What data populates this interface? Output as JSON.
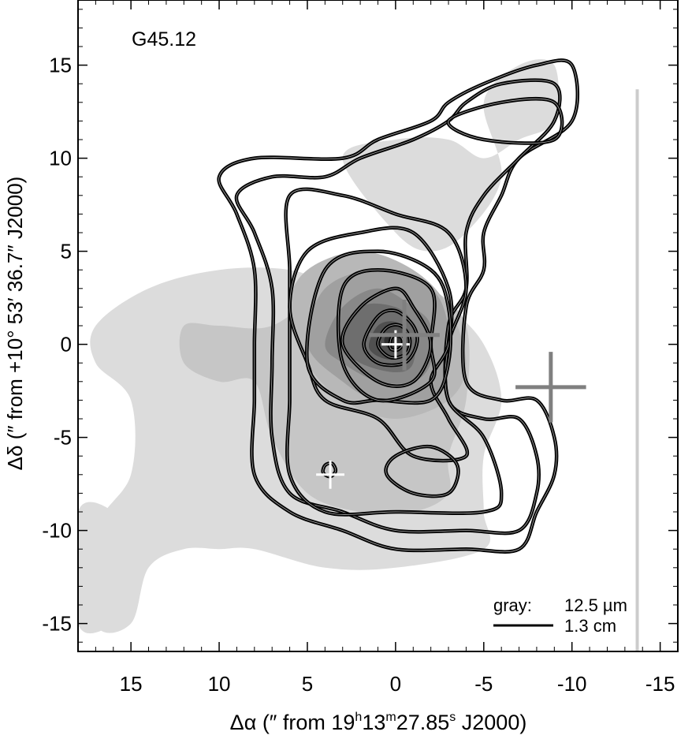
{
  "chart_data": {
    "type": "contour",
    "panel_label": "G45.12",
    "xlabel_parts": {
      "prefix": "Δα (″  from  19",
      "h": "h",
      "v1": "13",
      "m": "m",
      "v2": "27.85",
      "s": "s",
      "suffix": " J2000)"
    },
    "ylabel": "Δδ (″ from +10° 53′ 36.7″ J2000)",
    "xlim": [
      18,
      -16
    ],
    "ylim": [
      -16.5,
      18.5
    ],
    "x_ticks": [
      15,
      10,
      5,
      0,
      -5,
      -10,
      -15
    ],
    "x_tick_labels": [
      "15",
      "10",
      "5",
      "0",
      "-5",
      "-10",
      "-15"
    ],
    "y_ticks": [
      15,
      10,
      5,
      0,
      -5,
      -10,
      -15
    ],
    "y_tick_labels": [
      "15",
      "10",
      "5",
      "0",
      "-5",
      "-10",
      "-15"
    ],
    "legend": {
      "gray_label": "gray:",
      "gray_value": "12.5 µm",
      "line_value": "1.3 cm",
      "position": "bottom-right"
    },
    "gray_image": {
      "name": "12.5 µm",
      "levels": [
        {
          "shade": "#dcdcdc",
          "contour": [
            [
              17,
              1
            ],
            [
              14,
              3
            ],
            [
              10,
              4
            ],
            [
              6,
              4
            ],
            [
              3,
              3
            ],
            [
              1,
              3
            ],
            [
              -1,
              3
            ],
            [
              -3,
              2
            ],
            [
              -5,
              0
            ],
            [
              -6,
              -3
            ],
            [
              -5,
              -6
            ],
            [
              -5,
              -9
            ],
            [
              -5,
              -11
            ],
            [
              0,
              -12
            ],
            [
              4,
              -12
            ],
            [
              8,
              -11
            ],
            [
              10,
              -11
            ],
            [
              12,
              -11
            ],
            [
              14,
              -12
            ],
            [
              15,
              -15
            ],
            [
              17,
              -15
            ],
            [
              17,
              -10
            ],
            [
              15,
              -7
            ],
            [
              15,
              -3
            ],
            [
              17,
              -1
            ]
          ]
        },
        {
          "shade": "#dcdcdc",
          "contour": [
            [
              18,
              -9
            ],
            [
              16,
              -9
            ],
            [
              15,
              -11
            ],
            [
              15,
              -13
            ],
            [
              16,
              -15
            ],
            [
              18,
              -15
            ]
          ]
        },
        {
          "shade": "#dcdcdc",
          "contour": [
            [
              3,
              10
            ],
            [
              0,
              11
            ],
            [
              -3,
              11
            ],
            [
              -5,
              10
            ],
            [
              -7,
              11
            ],
            [
              -9,
              12
            ],
            [
              -9,
              15
            ],
            [
              -7,
              15
            ],
            [
              -5,
              13
            ],
            [
              -6,
              9
            ],
            [
              -4,
              6
            ],
            [
              -2,
              5
            ],
            [
              0,
              6
            ]
          ]
        },
        {
          "shade": "#c6c6c6",
          "contour": [
            [
              12,
              1
            ],
            [
              10,
              1
            ],
            [
              7,
              1
            ],
            [
              4,
              3
            ],
            [
              1,
              4
            ],
            [
              -2,
              3
            ],
            [
              -4,
              1
            ],
            [
              -4,
              -3
            ],
            [
              -3,
              -6
            ],
            [
              -3,
              -8
            ],
            [
              -1,
              -9
            ],
            [
              2,
              -9
            ],
            [
              5,
              -8
            ],
            [
              7,
              -5
            ],
            [
              8,
              -2
            ],
            [
              10,
              -2
            ],
            [
              12,
              -1
            ]
          ]
        },
        {
          "shade": "#b8b8b8",
          "contour": [
            [
              5,
              4
            ],
            [
              2,
              5
            ],
            [
              -1,
              4
            ],
            [
              -3,
              2
            ],
            [
              -4,
              -1
            ],
            [
              -3,
              -3
            ],
            [
              0,
              -4
            ],
            [
              3,
              -3
            ],
            [
              5,
              -1
            ],
            [
              6,
              2
            ]
          ]
        },
        {
          "shade": "#a0a0a0",
          "contour": [
            [
              4,
              3
            ],
            [
              1,
              4
            ],
            [
              -2,
              3
            ],
            [
              -3,
              1
            ],
            [
              -3,
              -1
            ],
            [
              -2,
              -3
            ],
            [
              1,
              -3
            ],
            [
              3,
              -2
            ],
            [
              5,
              0
            ]
          ]
        },
        {
          "shade": "#888888",
          "contour": [
            [
              3,
              2
            ],
            [
              1,
              3
            ],
            [
              -1,
              2
            ],
            [
              -2,
              1
            ],
            [
              -2,
              -1
            ],
            [
              -1,
              -2
            ],
            [
              1,
              -2
            ],
            [
              3,
              -1
            ],
            [
              4,
              0
            ]
          ]
        },
        {
          "shade": "#6e6e6e",
          "contour": [
            [
              2,
              2
            ],
            [
              0,
              2
            ],
            [
              -1,
              1
            ],
            [
              -1,
              -1
            ],
            [
              0,
              -1.5
            ],
            [
              2,
              -1
            ],
            [
              3,
              0
            ]
          ]
        },
        {
          "shade": "#505050",
          "contour": [
            [
              1,
              1
            ],
            [
              0,
              1.2
            ],
            [
              -0.8,
              0.5
            ],
            [
              -0.6,
              -0.5
            ],
            [
              0.5,
              -0.8
            ],
            [
              1.5,
              -0.2
            ]
          ]
        },
        {
          "shade": "#303030",
          "contour": [
            [
              0.5,
              0.5
            ],
            [
              -0.3,
              0.5
            ],
            [
              -0.5,
              0
            ],
            [
              0,
              -0.4
            ],
            [
              0.6,
              0
            ]
          ]
        }
      ]
    },
    "contours_1.3cm": [
      [
        [
          10,
          9
        ],
        [
          8,
          10
        ],
        [
          3,
          10
        ],
        [
          1,
          11
        ],
        [
          -2,
          12
        ],
        [
          -3,
          13
        ],
        [
          -5,
          14
        ],
        [
          -8,
          15
        ],
        [
          -10,
          15
        ],
        [
          -10,
          12
        ],
        [
          -7,
          10
        ],
        [
          -6,
          8
        ],
        [
          -5,
          6
        ],
        [
          -5,
          4
        ],
        [
          -4,
          2
        ],
        [
          -4,
          -2
        ],
        [
          -6,
          -3
        ],
        [
          -8,
          -3
        ],
        [
          -9,
          -5
        ],
        [
          -9,
          -7
        ],
        [
          -8,
          -9
        ],
        [
          -7,
          -11
        ],
        [
          -4,
          -11
        ],
        [
          0,
          -11
        ],
        [
          3,
          -10
        ],
        [
          6,
          -9
        ],
        [
          8,
          -7
        ],
        [
          8,
          -3
        ],
        [
          8,
          0
        ],
        [
          8,
          4
        ],
        [
          9,
          7
        ]
      ],
      [
        [
          9,
          8
        ],
        [
          7,
          9
        ],
        [
          4,
          9
        ],
        [
          2,
          10
        ],
        [
          -1,
          11
        ],
        [
          -3,
          12
        ],
        [
          -4,
          13
        ],
        [
          -6,
          14
        ],
        [
          -9,
          14
        ],
        [
          -9,
          12
        ],
        [
          -7,
          10
        ],
        [
          -5,
          8
        ],
        [
          -4,
          6
        ],
        [
          -4,
          3
        ],
        [
          -3,
          1
        ],
        [
          -3,
          -3
        ],
        [
          -5,
          -4
        ],
        [
          -7,
          -4
        ],
        [
          -8,
          -6
        ],
        [
          -8,
          -8
        ],
        [
          -7,
          -10
        ],
        [
          -4,
          -10
        ],
        [
          0,
          -10
        ],
        [
          3,
          -9
        ],
        [
          6,
          -8
        ],
        [
          7,
          -5
        ],
        [
          7,
          -1
        ],
        [
          7,
          3
        ],
        [
          8,
          6
        ]
      ],
      [
        [
          6,
          8
        ],
        [
          3,
          8
        ],
        [
          0,
          7
        ],
        [
          -3,
          6
        ],
        [
          -4,
          3
        ],
        [
          -3,
          0
        ],
        [
          -3,
          -3
        ],
        [
          -5,
          -5
        ],
        [
          -6,
          -8
        ],
        [
          -5,
          -9
        ],
        [
          0,
          -9
        ],
        [
          4,
          -9
        ],
        [
          6,
          -7
        ],
        [
          6,
          -3
        ],
        [
          6,
          0
        ],
        [
          6,
          4
        ]
      ],
      [
        [
          5,
          5
        ],
        [
          2,
          6
        ],
        [
          -1,
          6
        ],
        [
          -3,
          3
        ],
        [
          -3,
          0
        ],
        [
          -2,
          -2
        ],
        [
          -3,
          -4
        ],
        [
          -4,
          -6
        ],
        [
          -1,
          -6
        ],
        [
          1,
          -4
        ],
        [
          4,
          -3
        ],
        [
          5,
          -1
        ],
        [
          6,
          2
        ]
      ],
      [
        [
          4,
          4
        ],
        [
          1,
          5
        ],
        [
          -2,
          4
        ],
        [
          -3,
          2
        ],
        [
          -3,
          -1
        ],
        [
          -2,
          -3
        ],
        [
          1,
          -3
        ],
        [
          3,
          -3
        ],
        [
          5,
          -1
        ]
      ],
      [
        [
          3,
          3
        ],
        [
          1,
          4
        ],
        [
          -2,
          3
        ],
        [
          -2,
          0
        ],
        [
          -2,
          -2
        ],
        [
          1,
          -3
        ],
        [
          3,
          -1
        ]
      ],
      [
        [
          2,
          2
        ],
        [
          0,
          3
        ],
        [
          -1,
          2
        ],
        [
          -2,
          0
        ],
        [
          -1,
          -2
        ],
        [
          1,
          -2
        ],
        [
          3,
          0
        ]
      ],
      [
        [
          1,
          1.5
        ],
        [
          0,
          1.8
        ],
        [
          -1,
          1
        ],
        [
          -1.2,
          0
        ],
        [
          -0.5,
          -1
        ],
        [
          1,
          -1
        ],
        [
          1.8,
          0
        ]
      ],
      [
        [
          0.5,
          0.9
        ],
        [
          -0.3,
          1
        ],
        [
          -0.8,
          0.3
        ],
        [
          -0.6,
          -0.5
        ],
        [
          0.3,
          -0.7
        ],
        [
          1,
          0
        ]
      ],
      [
        [
          0.2,
          0.4
        ],
        [
          -0.3,
          0.4
        ],
        [
          -0.4,
          0
        ],
        [
          -0.1,
          -0.3
        ],
        [
          0.3,
          -0.2
        ]
      ],
      [
        [
          0,
          -6
        ],
        [
          -2,
          -5.5
        ],
        [
          -3.5,
          -6.5
        ],
        [
          -3,
          -8
        ],
        [
          -1,
          -8
        ],
        [
          0.5,
          -7
        ]
      ],
      [
        [
          -3,
          12
        ],
        [
          -5,
          11
        ],
        [
          -9,
          11
        ],
        [
          -9,
          13
        ],
        [
          -6,
          13
        ]
      ],
      [
        [
          4,
          -6.5
        ],
        [
          3.6,
          -6.4
        ],
        [
          3.4,
          -6.8
        ],
        [
          3.7,
          -7.1
        ],
        [
          4.1,
          -6.9
        ]
      ]
    ],
    "markers": [
      {
        "label": "white_cross",
        "x": 0,
        "y": 0,
        "color": "#ffffff",
        "size": 0.8
      },
      {
        "label": "white_cross",
        "x": 3.7,
        "y": -7,
        "color": "#ffffff",
        "size": 0.8
      },
      {
        "label": "gray_cross",
        "x": -0.5,
        "y": 0.5,
        "color": "#808080",
        "size": 2
      },
      {
        "label": "gray_cross",
        "x": -8.8,
        "y": -2.3,
        "color": "#808080",
        "size": 2
      }
    ],
    "edge_artifact": {
      "x": -13.7,
      "y1": -16.5,
      "y2": 13.7,
      "color": "#cccccc"
    }
  }
}
